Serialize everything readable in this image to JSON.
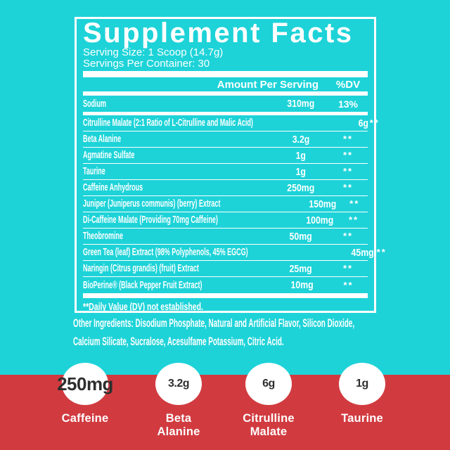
{
  "colors": {
    "background_teal": "#1dd3d8",
    "background_red": "#d13b40",
    "panel_text": "#ffffff",
    "stat_value_text": "#2e2e2e"
  },
  "panel": {
    "title": "Supplement Facts",
    "serving_size": "Serving Size: 1 Scoop (14.7g)",
    "servings_per_container": "Servings Per Container: 30",
    "header": {
      "amount": "Amount Per Serving",
      "dv": "%DV"
    },
    "sodium_row": {
      "name": "Sodium",
      "amount": "310mg",
      "dv": "13%"
    },
    "rows": [
      {
        "name": "Citrulline Malate (2:1 Ratio of L-Citrulline and Malic Acid)",
        "amount": "6g",
        "dv": "**"
      },
      {
        "name": "Beta Alanine",
        "amount": "3.2g",
        "dv": "**"
      },
      {
        "name": "Agmatine Sulfate",
        "amount": "1g",
        "dv": "**"
      },
      {
        "name": "Taurine",
        "amount": "1g",
        "dv": "**"
      },
      {
        "name": "Caffeine Anhydrous",
        "amount": "250mg",
        "dv": "**"
      },
      {
        "name": "Juniper (Juniperus communis) (berry) Extract",
        "amount": "150mg",
        "dv": "**"
      },
      {
        "name": "Di-Caffeine Malate (Providing 70mg Caffeine)",
        "amount": "100mg",
        "dv": "**"
      },
      {
        "name": "Theobromine",
        "amount": "50mg",
        "dv": "**"
      },
      {
        "name": "Green Tea (leaf) Extract (98% Polyphenols, 45% EGCG)",
        "amount": "45mg",
        "dv": "**"
      },
      {
        "name": "Naringin (Citrus grandis) (fruit) Extract",
        "amount": "25mg",
        "dv": "**"
      },
      {
        "name": "BioPerine® (Black Pepper Fruit Extract)",
        "amount": "10mg",
        "dv": "**"
      }
    ],
    "footnote": "**Daily Value (DV) not established."
  },
  "other_ingredients": {
    "line1": "Other Ingredients: Disodium Phosphate, Natural and Artificial Flavor, Silicon Dioxide,",
    "line2": "Calcium Silicate, Sucralose, Acesulfame Potassium, Citric Acid."
  },
  "stats": [
    {
      "value": "250mg",
      "label": "Caffeine"
    },
    {
      "value": "3.2g",
      "label": "Beta Alanine"
    },
    {
      "value": "6g",
      "label": "Citrulline Malate"
    },
    {
      "value": "1g",
      "label": "Taurine"
    }
  ]
}
